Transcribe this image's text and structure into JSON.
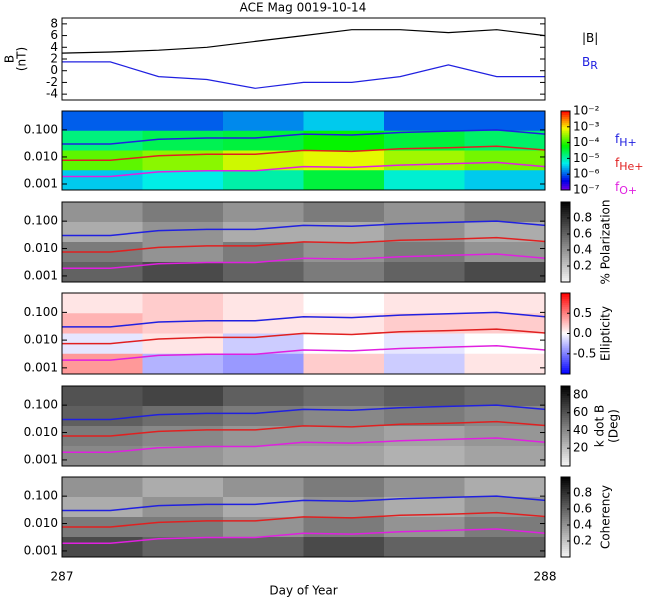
{
  "chart_data": [
    {
      "type": "line",
      "title": "ACE Mag 0019-10-14",
      "ylabel": "B",
      "ylabel_unit": "(nT)",
      "ylim": [
        -5,
        9
      ],
      "yticks": [
        -4,
        -2,
        0,
        2,
        4,
        6,
        8
      ],
      "x": [
        287,
        287.1,
        287.2,
        287.3,
        287.4,
        287.5,
        287.6,
        287.7,
        287.8,
        287.9,
        288
      ],
      "series": [
        {
          "name": "|B|",
          "color": "#000000",
          "values": [
            3,
            3.2,
            3.5,
            4,
            5,
            6,
            7,
            7,
            6.5,
            7,
            6
          ]
        },
        {
          "name": "B",
          "subscript": "R",
          "color": "#2020e0",
          "values": [
            1.5,
            1.5,
            -1,
            -1.5,
            -3,
            -2,
            -2,
            -1,
            1,
            -1,
            -1
          ]
        }
      ]
    },
    {
      "type": "spectrogram",
      "log": true,
      "ylim": [
        0.0006,
        0.5
      ],
      "yticks": [
        {
          "value": 0.1,
          "label": "0.100"
        },
        {
          "value": 0.01,
          "label": "0.010"
        },
        {
          "value": 0.001,
          "label": "0.001"
        }
      ],
      "colormap": "rainbow",
      "clim": [
        -7,
        -2
      ],
      "cticks": [
        {
          "value": -2,
          "label": "10⁻²"
        },
        {
          "value": -3,
          "label": "10⁻³"
        },
        {
          "value": -4,
          "label": "10⁻⁴"
        },
        {
          "value": -5,
          "label": "10⁻⁵"
        },
        {
          "value": -6,
          "label": "10⁻⁶"
        },
        {
          "value": -7,
          "label": "10⁻⁷"
        }
      ],
      "z": [
        [
          -6,
          -6,
          -5.8,
          -5.5,
          -6,
          -6
        ],
        [
          -4.8,
          -4.6,
          -4.5,
          -4.2,
          -4.5,
          -4.7
        ],
        [
          -3.8,
          -3.6,
          -3.3,
          -3.2,
          -3.5,
          -3.7
        ],
        [
          -5.5,
          -5.3,
          -5,
          -4.5,
          -5.2,
          -5.5
        ]
      ],
      "series": [
        {
          "name": "f",
          "subscript": "H+",
          "color": "#2020e0",
          "values": [
            0.03,
            0.03,
            0.045,
            0.05,
            0.05,
            0.07,
            0.065,
            0.08,
            0.09,
            0.1,
            0.07
          ]
        },
        {
          "name": "f",
          "subscript": "He+",
          "color": "#e02020",
          "values": [
            0.0075,
            0.0075,
            0.011,
            0.0125,
            0.0125,
            0.0175,
            0.016,
            0.02,
            0.022,
            0.025,
            0.018
          ]
        },
        {
          "name": "f",
          "subscript": "O+",
          "color": "#e020e0",
          "values": [
            0.0019,
            0.0019,
            0.0028,
            0.0031,
            0.0031,
            0.0044,
            0.0041,
            0.005,
            0.0056,
            0.0063,
            0.0044
          ]
        }
      ]
    },
    {
      "type": "spectrogram",
      "log": true,
      "ylim": [
        0.0006,
        0.5
      ],
      "yticks": [
        {
          "value": 0.1,
          "label": "0.100"
        },
        {
          "value": 0.01,
          "label": "0.010"
        },
        {
          "value": 0.001,
          "label": "0.001"
        }
      ],
      "colormap": "gray",
      "clim": [
        0,
        1
      ],
      "clabel": "% Polarization",
      "cticks": [
        0.2,
        0.4,
        0.6,
        0.8
      ],
      "z": [
        [
          0.4,
          0.5,
          0.4,
          0.5,
          0.4,
          0.5
        ],
        [
          0.3,
          0.4,
          0.3,
          0.3,
          0.4,
          0.3
        ],
        [
          0.5,
          0.4,
          0.5,
          0.4,
          0.5,
          0.4
        ],
        [
          0.6,
          0.7,
          0.6,
          0.5,
          0.6,
          0.7
        ]
      ]
    },
    {
      "type": "spectrogram",
      "log": true,
      "ylim": [
        0.0006,
        0.5
      ],
      "yticks": [
        {
          "value": 0.1,
          "label": "0.100"
        },
        {
          "value": 0.01,
          "label": "0.010"
        },
        {
          "value": 0.001,
          "label": "0.001"
        }
      ],
      "colormap": "bwr",
      "clim": [
        -1,
        1
      ],
      "clabel": "Ellipticity",
      "cticks": [
        0.5,
        {
          "value": 0,
          "label": "0.0"
        },
        -0.5
      ],
      "z": [
        [
          0.1,
          0.2,
          0.1,
          0,
          0.1,
          0.1
        ],
        [
          0.3,
          0.2,
          0.1,
          0.1,
          0.2,
          0.2
        ],
        [
          -0.1,
          0.1,
          -0.2,
          0,
          -0.1,
          0
        ],
        [
          0.4,
          -0.3,
          -0.4,
          0.2,
          -0.2,
          0.1
        ]
      ]
    },
    {
      "type": "spectrogram",
      "log": true,
      "ylim": [
        0.0006,
        0.5
      ],
      "yticks": [
        {
          "value": 0.1,
          "label": "0.100"
        },
        {
          "value": 0.01,
          "label": "0.010"
        },
        {
          "value": 0.001,
          "label": "0.001"
        }
      ],
      "colormap": "gray",
      "clim": [
        0,
        90
      ],
      "clabel": "k dot B",
      "clabel_unit": "(Deg)",
      "cticks": [
        20,
        40,
        60,
        80
      ],
      "z": [
        [
          60,
          65,
          55,
          50,
          55,
          50
        ],
        [
          55,
          50,
          45,
          40,
          45,
          40
        ],
        [
          45,
          40,
          35,
          35,
          30,
          35
        ],
        [
          40,
          35,
          30,
          30,
          25,
          30
        ]
      ]
    },
    {
      "type": "spectrogram",
      "log": true,
      "ylim": [
        0.0006,
        0.5
      ],
      "yticks": [
        {
          "value": 0.1,
          "label": "0.100"
        },
        {
          "value": 0.01,
          "label": "0.010"
        },
        {
          "value": 0.001,
          "label": "0.001"
        }
      ],
      "colormap": "gray",
      "clim": [
        0,
        1
      ],
      "clabel": "Coherency",
      "cticks": [
        0.2,
        0.4,
        0.6,
        0.8
      ],
      "z": [
        [
          0.4,
          0.3,
          0.4,
          0.5,
          0.4,
          0.3
        ],
        [
          0.3,
          0.4,
          0.3,
          0.4,
          0.3,
          0.4
        ],
        [
          0.5,
          0.5,
          0.4,
          0.5,
          0.4,
          0.5
        ],
        [
          0.7,
          0.6,
          0.6,
          0.7,
          0.6,
          0.6
        ]
      ],
      "xlim": [
        287,
        288
      ],
      "xticks": [
        287,
        288
      ],
      "xlabel": "Day of Year"
    }
  ]
}
